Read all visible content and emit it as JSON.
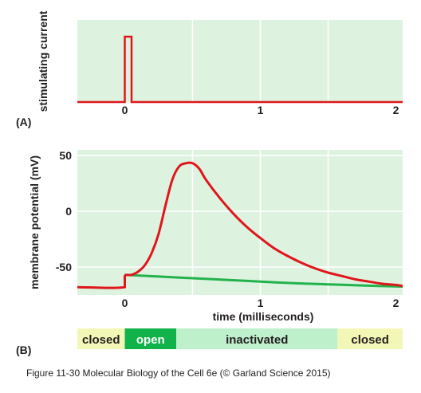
{
  "caption": "Figure 11-30  Molecular Biology of the Cell 6e (© Garland Science 2015)",
  "colors": {
    "panel_bg": "#ddf3e0",
    "grid": "#ffffff",
    "stimulus": "#e0161b",
    "action_potential": "#e0161b",
    "resting_curve": "#22b24c",
    "closed_bg": "#f3f7b6",
    "open_bg": "#12b24a",
    "inactivated_bg": "#bff0cc"
  },
  "chart_data": [
    {
      "type": "line",
      "panel_label": "(A)",
      "ylabel": "stimulating current",
      "x_ticks": [
        "0",
        "1",
        "2"
      ],
      "xlim": [
        -0.35,
        2.05
      ],
      "series": [
        {
          "role": "stimulus-pulse",
          "x": [
            -0.35,
            0.0,
            0.0,
            0.05,
            0.05,
            2.05
          ],
          "y": [
            0,
            0,
            1,
            1,
            0,
            0
          ]
        }
      ]
    },
    {
      "type": "line",
      "panel_label": "(B)",
      "xlabel": "time (milliseconds)",
      "ylabel": "membrane potential (mV)",
      "x_ticks": [
        "0",
        "1",
        "2"
      ],
      "y_ticks": [
        "50",
        "0",
        "-50"
      ],
      "xlim": [
        -0.35,
        2.05
      ],
      "ylim": [
        -75,
        55
      ],
      "series": [
        {
          "role": "action-potential",
          "x": [
            -0.35,
            0.0,
            0.0,
            0.05,
            0.1,
            0.15,
            0.2,
            0.25,
            0.3,
            0.35,
            0.4,
            0.45,
            0.5,
            0.55,
            0.6,
            0.7,
            0.8,
            0.9,
            1.0,
            1.1,
            1.2,
            1.3,
            1.4,
            1.5,
            1.6,
            1.7,
            1.8,
            1.9,
            2.0,
            2.05
          ],
          "y": [
            -68,
            -68,
            -58,
            -57,
            -54,
            -48,
            -37,
            -20,
            5,
            28,
            40,
            43,
            43,
            38,
            28,
            12,
            -2,
            -14,
            -24,
            -33,
            -40,
            -46,
            -51,
            -55,
            -58,
            -61,
            -63,
            -65,
            -66,
            -67
          ]
        },
        {
          "role": "resting-decay",
          "x": [
            0.0,
            0.25,
            0.5,
            0.75,
            1.0,
            1.25,
            1.5,
            1.75,
            2.05
          ],
          "y": [
            -57,
            -58.5,
            -60,
            -61.5,
            -63,
            -64.5,
            -65.5,
            -66.5,
            -67.5
          ]
        }
      ]
    }
  ],
  "channel_states": [
    {
      "label": "closed",
      "state": "closed",
      "from": -0.35,
      "to": 0.0
    },
    {
      "label": "open",
      "state": "open",
      "from": 0.0,
      "to": 0.38
    },
    {
      "label": "inactivated",
      "state": "inactivated",
      "from": 0.38,
      "to": 1.57
    },
    {
      "label": "closed",
      "state": "closed",
      "from": 1.57,
      "to": 2.05
    }
  ]
}
